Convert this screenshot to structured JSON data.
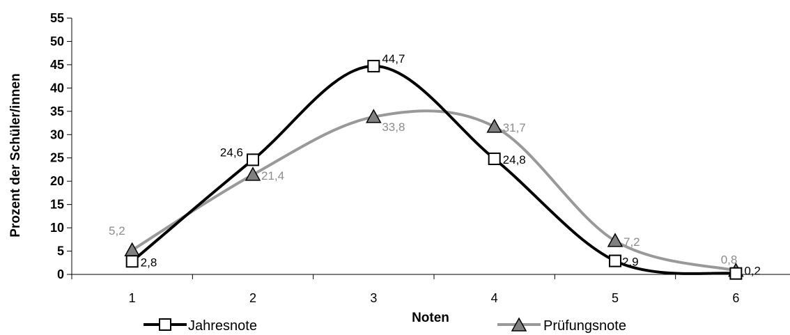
{
  "chart_data": {
    "type": "line",
    "categories": [
      "1",
      "2",
      "3",
      "4",
      "5",
      "6"
    ],
    "xlabel": "Noten",
    "ylabel": "Prozent der Schüler/innen",
    "ylim": [
      0,
      55
    ],
    "yticks": [
      "0",
      "5",
      "10",
      "15",
      "20",
      "25",
      "30",
      "35",
      "40",
      "45",
      "50",
      "55"
    ],
    "grid": false,
    "legend_position": "bottom",
    "series": [
      {
        "name": "Jahresnote",
        "values": [
          2.8,
          24.6,
          44.7,
          24.8,
          2.9,
          0.2
        ],
        "labels": [
          "2,8",
          "24,6",
          "44,7",
          "24,8",
          "2,9",
          "0,2"
        ],
        "color": "#000000",
        "marker": "square"
      },
      {
        "name": "Prüfungsnote",
        "values": [
          5.2,
          21.4,
          33.8,
          31.7,
          7.2,
          0.8
        ],
        "labels": [
          "5,2",
          "21,4",
          "33,8",
          "31,7",
          "7,2",
          "0,8"
        ],
        "color": "#999999",
        "marker": "triangle"
      }
    ]
  }
}
